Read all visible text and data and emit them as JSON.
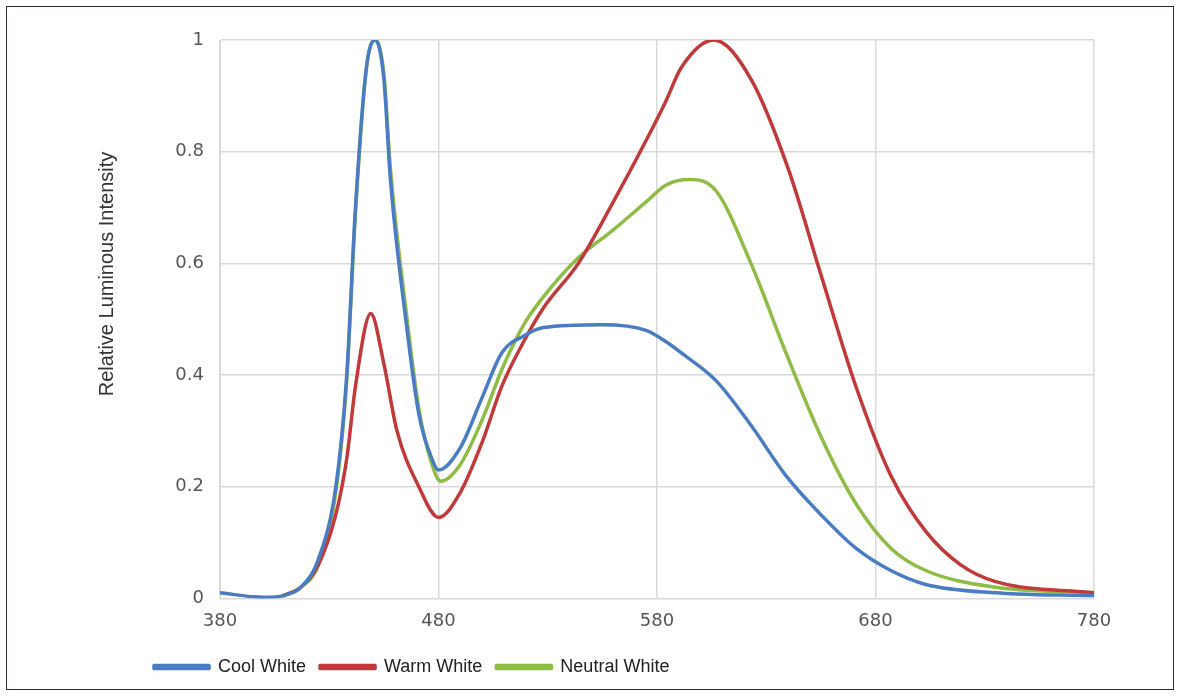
{
  "chart_data": {
    "type": "line",
    "ylabel": "Relative Luminous Intensity",
    "xlim": [
      380,
      780
    ],
    "xticks": [
      380,
      480,
      580,
      680,
      780
    ],
    "ylim": [
      0,
      1
    ],
    "yticks": [
      0,
      0.2,
      0.4,
      0.6,
      0.8,
      1
    ],
    "grid": true,
    "legend": "bottom",
    "marker": "none",
    "line_style": "solid",
    "series": [
      {
        "name": "Cool White",
        "color": "#4a7cc4",
        "x": [
          380,
          400,
          409,
          417,
          425,
          433,
          438,
          442,
          447,
          451,
          455,
          458,
          465,
          471,
          477,
          480,
          490,
          500,
          509,
          519,
          528,
          555,
          575,
          584,
          591,
          607,
          623,
          639,
          655,
          671,
          687,
          703,
          735,
          780
        ],
        "values": [
          0.01,
          0.002,
          0.005,
          0.02,
          0.07,
          0.2,
          0.4,
          0.7,
          0.95,
          1,
          0.93,
          0.75,
          0.5,
          0.33,
          0.25,
          0.23,
          0.27,
          0.36,
          0.44,
          0.47,
          0.485,
          0.49,
          0.48,
          0.46,
          0.44,
          0.39,
          0.31,
          0.22,
          0.15,
          0.09,
          0.05,
          0.025,
          0.01,
          0.005
        ]
      },
      {
        "name": "Warm White",
        "color": "#c0393b",
        "x": [
          409,
          417,
          425,
          433,
          438,
          442,
          449,
          455,
          461,
          471,
          480,
          490,
          500,
          509,
          519,
          528,
          544,
          560,
          575,
          584,
          591,
          606,
          623,
          640,
          655,
          671,
          687,
          703,
          719,
          735,
          780
        ],
        "values": [
          0.005,
          0.02,
          0.06,
          0.15,
          0.25,
          0.38,
          0.51,
          0.42,
          0.3,
          0.2,
          0.145,
          0.19,
          0.28,
          0.38,
          0.46,
          0.52,
          0.6,
          0.71,
          0.82,
          0.89,
          0.95,
          1,
          0.93,
          0.77,
          0.58,
          0.38,
          0.22,
          0.12,
          0.06,
          0.03,
          0.01
        ]
      },
      {
        "name": "Neutral White",
        "color": "#8fbc45",
        "x": [
          409,
          417,
          425,
          433,
          438,
          442,
          447,
          451,
          455,
          458,
          465,
          471,
          477,
          481,
          490,
          500,
          509,
          519,
          528,
          544,
          560,
          575,
          584,
          595,
          607,
          623,
          639,
          655,
          671,
          687,
          703,
          735,
          780
        ],
        "values": [
          0.005,
          0.02,
          0.06,
          0.19,
          0.39,
          0.69,
          0.95,
          1,
          0.94,
          0.77,
          0.52,
          0.34,
          0.24,
          0.21,
          0.24,
          0.32,
          0.41,
          0.49,
          0.54,
          0.61,
          0.66,
          0.71,
          0.74,
          0.75,
          0.73,
          0.6,
          0.44,
          0.29,
          0.17,
          0.09,
          0.05,
          0.02,
          0.01
        ]
      }
    ]
  }
}
